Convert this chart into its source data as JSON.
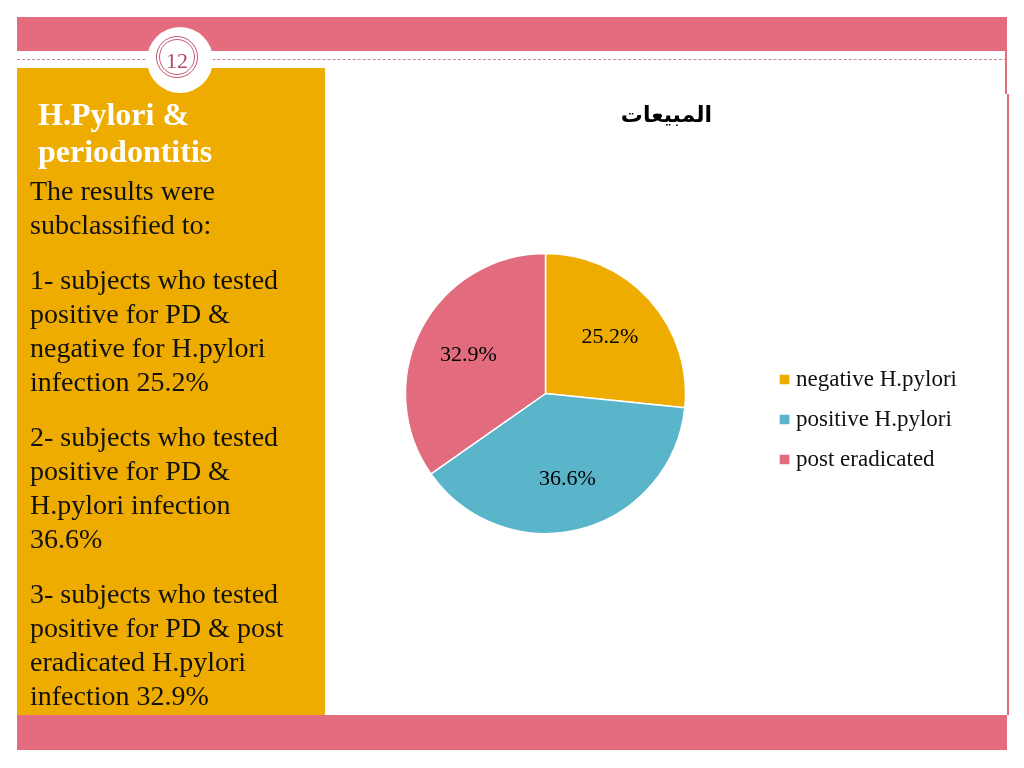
{
  "chart_data": [
    {
      "type": "other",
      "title": "H.Pylori & periodontitis",
      "annotations": [
        "12",
        "The results were subclassified to:",
        "1- subjects who tested positive for PD & negative for H.pylori infection 25.2%",
        "2- subjects who tested positive for PD & H.pylori infection 36.6%",
        "3- subjects who tested positive for PD & post eradicated H.pylori infection 32.9%"
      ]
    },
    {
      "type": "pie",
      "title": "المبيعات",
      "categories": [
        "negative H.pylori",
        "positive H.pylori",
        "post eradicated"
      ],
      "values": [
        25.2,
        36.6,
        32.9
      ],
      "colors": [
        "#efac00",
        "#5ab5cb",
        "#e26c7e"
      ],
      "value_labels": [
        "25.2%",
        "36.6%",
        "32.9%"
      ],
      "legend": "right"
    }
  ]
}
